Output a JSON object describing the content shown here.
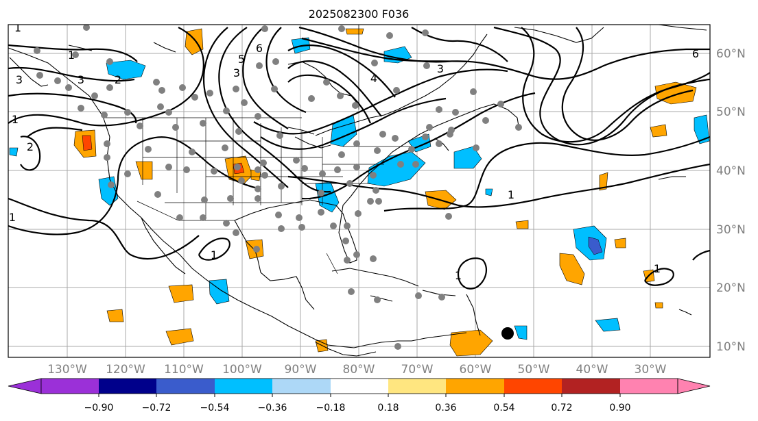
{
  "map": {
    "title": "2025082300 F036",
    "lon_labels": [
      "130°W",
      "120°W",
      "110°W",
      "100°W",
      "90°W",
      "80°W",
      "70°W",
      "60°W",
      "50°W",
      "40°W",
      "30°W"
    ],
    "lat_labels": [
      "60°N",
      "50°N",
      "40°N",
      "30°N",
      "20°N",
      "10°N"
    ],
    "contour_labels": [
      "1",
      "1",
      "1",
      "1",
      "1",
      "1",
      "1",
      "1",
      "2",
      "2",
      "3",
      "3",
      "3",
      "3",
      "4",
      "5",
      "6",
      "6"
    ],
    "colorbar": {
      "ticks": [
        "−0.90",
        "−0.72",
        "−0.54",
        "−0.36",
        "−0.18",
        "0.18",
        "0.36",
        "0.54",
        "0.72",
        "0.90"
      ],
      "colors": [
        "#9b30d8",
        "#00008b",
        "#3a5ccc",
        "#00bfff",
        "#add8f7",
        "#ffffff",
        "#ffe680",
        "#ffa500",
        "#ff4500",
        "#b22222",
        "#ff82b0"
      ]
    },
    "anomaly_colors": {
      "positive_weak": "#ffa500",
      "positive_strong": "#ff4500",
      "negative_weak": "#00bfff",
      "negative_strong": "#3a5ccc"
    },
    "station_color": "#808080",
    "storm_marker_color": "#000000"
  }
}
